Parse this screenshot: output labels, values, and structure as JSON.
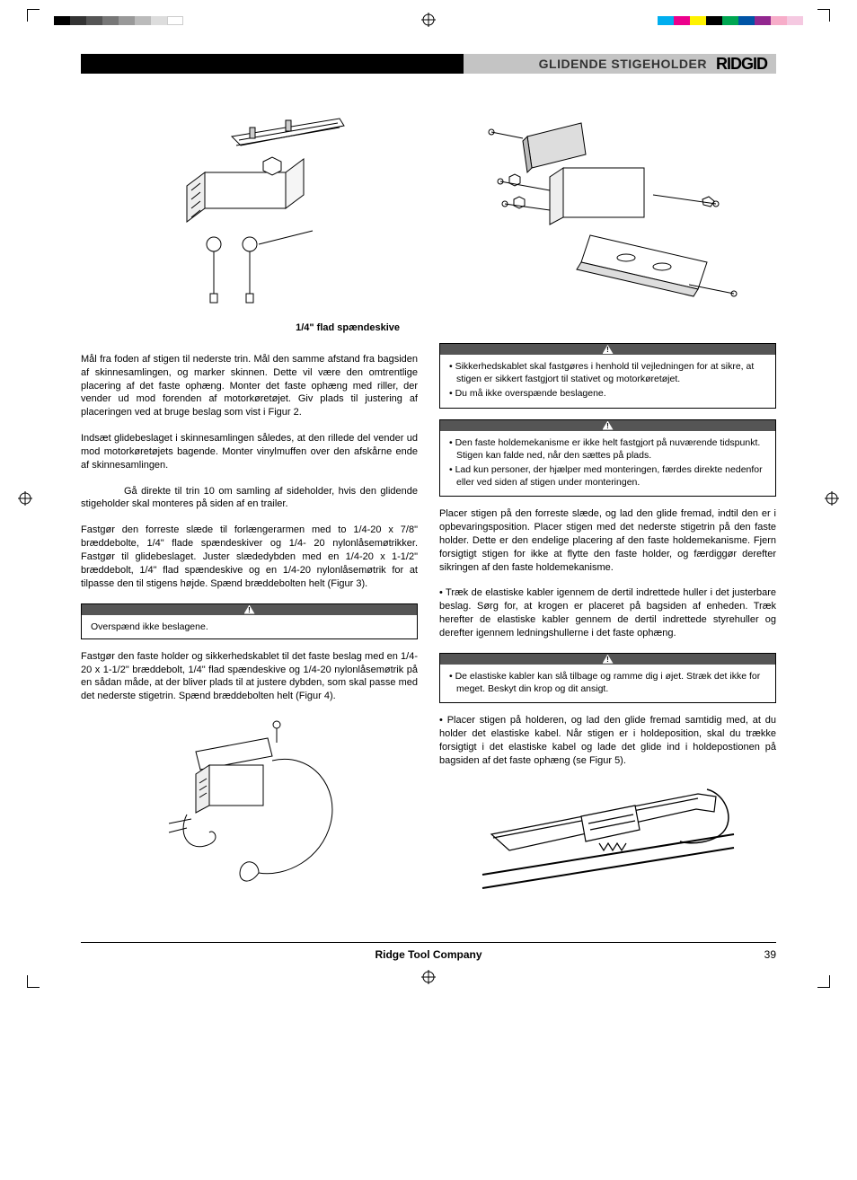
{
  "header": {
    "title": "GLIDENDE STIGEHOLDER",
    "brand": "RIDGID"
  },
  "figures": {
    "fig2_label": "1/4\" flad spændeskive"
  },
  "left_column": {
    "p1": "Mål fra foden af stigen til nederste trin. Mål den samme afstand fra bagsiden af skinnesamlingen, og marker skinnen. Dette vil være den omtrentlige placering af det faste ophæng. Monter det faste ophæng med riller, der vender ud mod forenden af motorkøretøjet. Giv plads til justering af placeringen ved at bruge beslag som vist i Figur 2.",
    "p2": "Indsæt glidebeslaget i skinnesamlingen således, at den rillede del vender ud mod motorkøretøjets bagende. Monter vinylmuffen over den afskårne ende af skinnesamlingen.",
    "p3": "Gå direkte til trin 10 om samling af sideholder, hvis den glidende stigeholder skal monteres på siden af en trailer.",
    "p4": "Fastgør den forreste slæde til forlængerarmen med to 1/4-20 x 7/8\" bræddebolte, 1/4\" flade spændeskiver og 1/4- 20 nylonlåsemøtrikker. Fastgør til glidebeslaget. Juster slædedybden med en 1/4-20 x 1-1/2\" bræddebolt, 1/4\" flad spændeskive og en 1/4-20 nylonlåsemøtrik for at tilpasse den til stigens højde. Spænd bræddebolten helt (Figur 3).",
    "warn1": "Overspænd ikke beslagene.",
    "p5": "Fastgør den faste holder og sikkerhedskablet til det faste beslag med en 1/4-20 x 1-1/2\" bræddebolt, 1/4\" flad spændeskive og 1/4-20 nylonlåsemøtrik på en sådan måde, at der bliver plads til at justere dybden, som skal passe med det nederste stigetrin.  Spænd bræddebolten helt (Figur 4)."
  },
  "right_column": {
    "warn2": [
      "• Sikkerhedskablet skal fastgøres i henhold til vejledningen for at sikre, at stigen er sikkert fastgjort til stativet og motorkøretøjet.",
      "• Du må ikke overspænde beslagene."
    ],
    "warn3": [
      "• Den faste holdemekanisme er ikke helt fastgjort på nuværende tidspunkt. Stigen kan falde ned, når den sættes på plads.",
      "• Lad kun personer, der hjælper med monteringen, færdes direkte nedenfor eller ved siden af stigen under monteringen."
    ],
    "p6": "Placer stigen på den forreste slæde, og lad den glide fremad, indtil den er i opbevaringsposition. Placer stigen med det nederste stigetrin på den faste holder. Dette er den endelige placering af den faste holdemekanisme. Fjern forsigtigt stigen for ikke at flytte den faste holder, og færdiggør derefter sikringen af den faste holdemekanisme.",
    "p7": "• Træk de elastiske kabler igennem de dertil indrettede huller i det justerbare beslag. Sørg for, at krogen er placeret på bagsiden af enheden. Træk herefter de elastiske kabler gennem de dertil indrettede styrehuller og derefter igennem ledningshullerne i det faste ophæng.",
    "warn4": [
      "• De elastiske kabler kan slå tilbage og ramme dig i øjet. Stræk det ikke for meget. Beskyt din krop og dit ansigt."
    ],
    "p8": "• Placer stigen på holderen, og lad den glide fremad samtidig med, at du holder det elastiske kabel. Når stigen er i holdeposition, skal du trække forsigtigt i det elastiske kabel og lade det glide ind i holdepostionen på bagsiden af det faste ophæng (se Figur 5)."
  },
  "footer": {
    "company": "Ridge Tool Company",
    "page": "39"
  },
  "color_bars": {
    "left": [
      "#000000",
      "#333333",
      "#555555",
      "#777777",
      "#999999",
      "#bbbbbb",
      "#dddddd",
      "#ffffff"
    ],
    "right": [
      "#00aeef",
      "#ec008c",
      "#fff200",
      "#000000",
      "#00a651",
      "#0054a6",
      "#92278f",
      "#f7adc9",
      "#f5c9e1"
    ]
  }
}
